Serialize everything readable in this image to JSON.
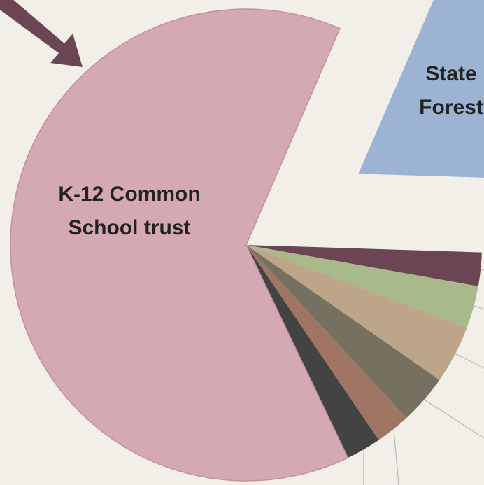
{
  "chart_data": {
    "type": "pie",
    "categories": [
      "State Forest",
      null,
      null,
      null,
      null,
      null,
      null,
      "K-12 Common School trust"
    ],
    "values": [
      19.0,
      2.3,
      2.9,
      4.0,
      3.4,
      2.4,
      2.4,
      63.6
    ],
    "colors": [
      "#9db3d4",
      "#6b4554",
      "#a8b98a",
      "#bda58a",
      "#757060",
      "#a07564",
      "#434343",
      "#d4a9b3"
    ]
  }
}
